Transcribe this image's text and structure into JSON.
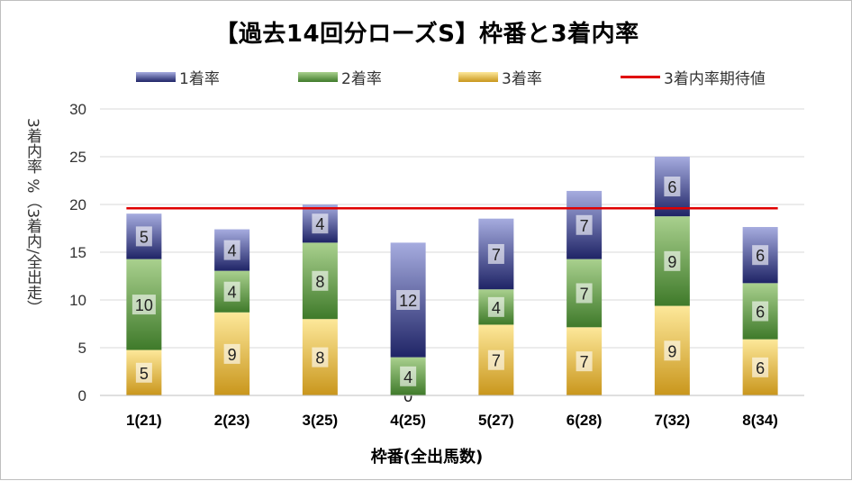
{
  "chart_data": {
    "type": "bar",
    "stacked": true,
    "title": "【過去14回分ローズS】枠番と3着内率",
    "xlabel": "枠番(全出馬数)",
    "ylabel": "3着内率 %（3着内/全出走）",
    "ylim": [
      0,
      30
    ],
    "yticks": [
      0,
      5,
      10,
      15,
      20,
      25,
      30
    ],
    "grid": true,
    "legend_position": "top",
    "categories": [
      "1(21)",
      "2(23)",
      "3(25)",
      "4(25)",
      "5(27)",
      "6(28)",
      "7(32)",
      "8(34)"
    ],
    "series": [
      {
        "name": "3着率",
        "values": [
          4.76,
          8.7,
          8.0,
          0.0,
          7.41,
          7.14,
          9.38,
          5.88
        ],
        "labels": [
          "5",
          "9",
          "8",
          "0",
          "7",
          "7",
          "9",
          "6"
        ],
        "color_light": "#fde89a",
        "color_dark": "#c9961c"
      },
      {
        "name": "2着率",
        "values": [
          9.52,
          4.35,
          8.0,
          4.0,
          3.7,
          7.14,
          9.38,
          5.88
        ],
        "labels": [
          "10",
          "4",
          "8",
          "4",
          "4",
          "7",
          "9",
          "6"
        ],
        "color_light": "#a9d08e",
        "color_dark": "#3f7a2a"
      },
      {
        "name": "1着率",
        "values": [
          4.76,
          4.35,
          4.0,
          12.0,
          7.41,
          7.14,
          6.25,
          5.88
        ],
        "labels": [
          "5",
          "4",
          "4",
          "12",
          "7",
          "7",
          "6",
          "6"
        ],
        "color_light": "#a6acdf",
        "color_dark": "#1f2466"
      }
    ],
    "reference_line": {
      "name": "3着内率期待値",
      "value": 19.6,
      "color": "#e00000"
    },
    "legend_order": [
      "1着率",
      "2着率",
      "3着率",
      "3着内率期待値"
    ]
  }
}
